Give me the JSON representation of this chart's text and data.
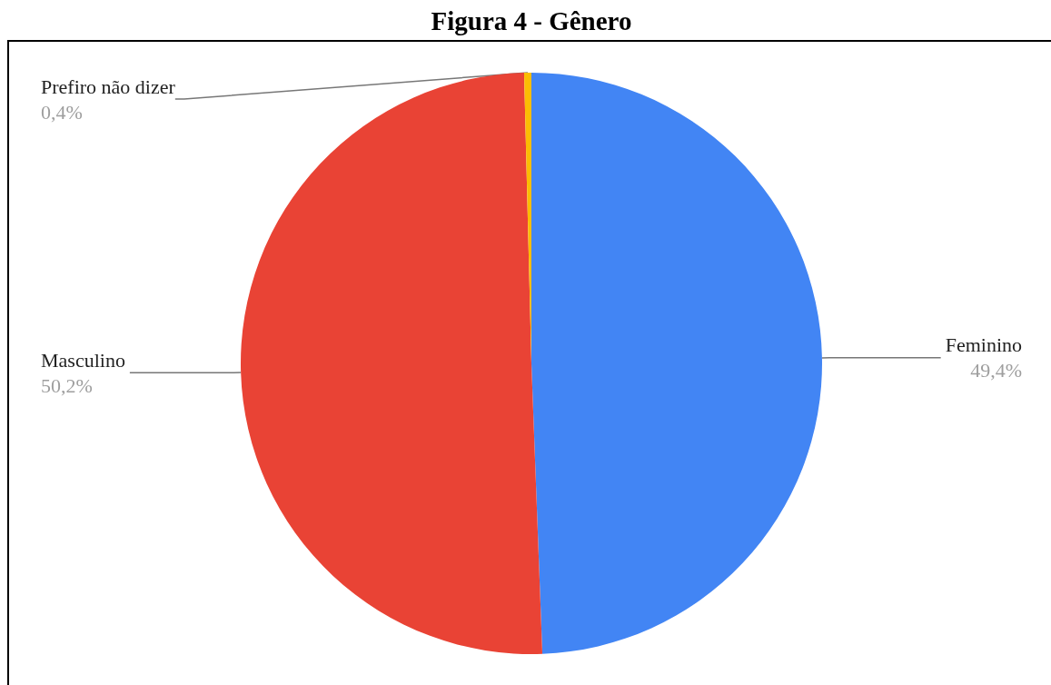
{
  "chart_data": {
    "type": "pie",
    "title": "Figura 4 - Gênero",
    "categories": [
      "Feminino",
      "Masculino",
      "Prefiro não dizer"
    ],
    "values": [
      49.4,
      50.2,
      0.4
    ],
    "colors": [
      "#4285f4",
      "#e94335",
      "#fbbc04"
    ],
    "value_labels": [
      "49,4%",
      "50,2%",
      "0,4%"
    ]
  }
}
